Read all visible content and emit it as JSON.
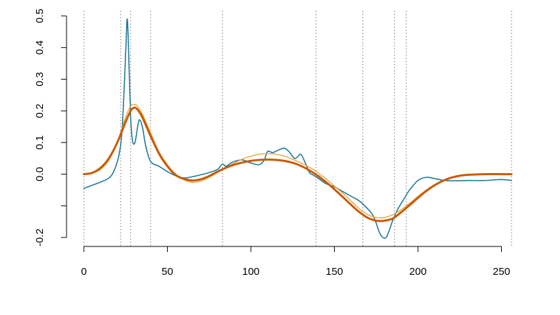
{
  "chart_data": {
    "type": "line",
    "title": "",
    "xlabel": "",
    "ylabel": "",
    "xlim": [
      0,
      256
    ],
    "ylim": [
      -0.2,
      0.5
    ],
    "x_ticks": [
      0,
      50,
      100,
      150,
      200,
      250
    ],
    "x_tick_labels": [
      "0",
      "50",
      "100",
      "150",
      "200",
      "250"
    ],
    "y_ticks": [
      -0.2,
      0.0,
      0.1,
      0.2,
      0.3,
      0.4,
      0.5
    ],
    "y_tick_labels": [
      "-0.2",
      "0.0",
      "0.1",
      "0.2",
      "0.3",
      "0.4",
      "0.5"
    ],
    "y_minor_ticks": [
      -0.1
    ],
    "grid": false,
    "vlines": [
      0,
      22,
      28,
      40,
      83,
      139,
      167,
      186,
      193,
      256
    ],
    "colors": {
      "series_1": "#1f7a99",
      "series_2": "#e8a33a",
      "series_3": "#c85a06",
      "vlines": "#888888",
      "axis": "#000000"
    },
    "series": [
      {
        "x": [
          0,
          5,
          10,
          15,
          18,
          21,
          23,
          25,
          26,
          27,
          28,
          29,
          30,
          31,
          33,
          35,
          37,
          40,
          45,
          50,
          55,
          60,
          65,
          70,
          75,
          80,
          83,
          85,
          88,
          90,
          95,
          100,
          105,
          108,
          110,
          113,
          116,
          120,
          123,
          126,
          128,
          130,
          133,
          135,
          137,
          140,
          145,
          150,
          155,
          160,
          165,
          170,
          173,
          175,
          177,
          179,
          181,
          183,
          185,
          188,
          192,
          195,
          200,
          205,
          210,
          215,
          220,
          230,
          240,
          250,
          256
        ],
        "values": [
          -0.045,
          -0.035,
          -0.025,
          -0.012,
          0.01,
          0.06,
          0.15,
          0.38,
          0.49,
          0.35,
          0.18,
          0.11,
          0.095,
          0.11,
          0.17,
          0.15,
          0.09,
          0.04,
          0.025,
          0.008,
          -0.005,
          -0.012,
          -0.008,
          -0.002,
          0.005,
          0.015,
          0.032,
          0.025,
          0.035,
          0.04,
          0.045,
          0.035,
          0.03,
          0.045,
          0.072,
          0.068,
          0.075,
          0.082,
          0.07,
          0.05,
          0.055,
          0.062,
          0.03,
          0.005,
          -0.002,
          -0.012,
          -0.03,
          -0.04,
          -0.055,
          -0.07,
          -0.085,
          -0.11,
          -0.13,
          -0.155,
          -0.185,
          -0.2,
          -0.2,
          -0.175,
          -0.145,
          -0.11,
          -0.075,
          -0.05,
          -0.02,
          -0.01,
          -0.014,
          -0.019,
          -0.021,
          -0.02,
          -0.02,
          -0.017,
          -0.02
        ]
      },
      {
        "x": [
          0,
          5,
          10,
          15,
          20,
          25,
          28,
          30,
          32,
          35,
          40,
          45,
          50,
          55,
          60,
          65,
          70,
          75,
          80,
          85,
          90,
          95,
          100,
          105,
          110,
          115,
          120,
          125,
          130,
          135,
          140,
          145,
          150,
          155,
          160,
          165,
          170,
          175,
          178,
          180,
          185,
          190,
          195,
          200,
          205,
          210,
          215,
          220,
          225,
          230,
          240,
          250,
          256
        ],
        "values": [
          0.0,
          0.003,
          0.015,
          0.045,
          0.1,
          0.18,
          0.215,
          0.22,
          0.215,
          0.19,
          0.13,
          0.07,
          0.03,
          0.0,
          -0.018,
          -0.026,
          -0.022,
          -0.01,
          0.005,
          0.02,
          0.035,
          0.048,
          0.057,
          0.063,
          0.065,
          0.063,
          0.057,
          0.047,
          0.035,
          0.022,
          0.005,
          -0.015,
          -0.038,
          -0.06,
          -0.085,
          -0.11,
          -0.128,
          -0.137,
          -0.138,
          -0.137,
          -0.128,
          -0.112,
          -0.092,
          -0.07,
          -0.05,
          -0.033,
          -0.02,
          -0.01,
          -0.004,
          -0.001,
          0.0,
          0.0,
          0.0
        ]
      },
      {
        "x": [
          0,
          5,
          10,
          15,
          20,
          25,
          28,
          30,
          32,
          35,
          40,
          45,
          50,
          55,
          60,
          65,
          70,
          75,
          80,
          85,
          90,
          95,
          100,
          105,
          110,
          115,
          120,
          125,
          130,
          135,
          140,
          145,
          150,
          155,
          160,
          165,
          170,
          175,
          178,
          180,
          185,
          190,
          195,
          200,
          205,
          210,
          215,
          220,
          225,
          230,
          240,
          250,
          256
        ],
        "values": [
          0.0,
          0.004,
          0.02,
          0.05,
          0.1,
          0.165,
          0.2,
          0.21,
          0.205,
          0.18,
          0.12,
          0.065,
          0.025,
          -0.003,
          -0.015,
          -0.02,
          -0.016,
          -0.006,
          0.008,
          0.02,
          0.03,
          0.037,
          0.042,
          0.045,
          0.046,
          0.045,
          0.042,
          0.036,
          0.026,
          0.012,
          -0.005,
          -0.025,
          -0.048,
          -0.072,
          -0.097,
          -0.12,
          -0.138,
          -0.147,
          -0.148,
          -0.147,
          -0.14,
          -0.12,
          -0.098,
          -0.075,
          -0.053,
          -0.035,
          -0.021,
          -0.011,
          -0.005,
          -0.002,
          0.0,
          0.0,
          0.0
        ]
      }
    ]
  }
}
